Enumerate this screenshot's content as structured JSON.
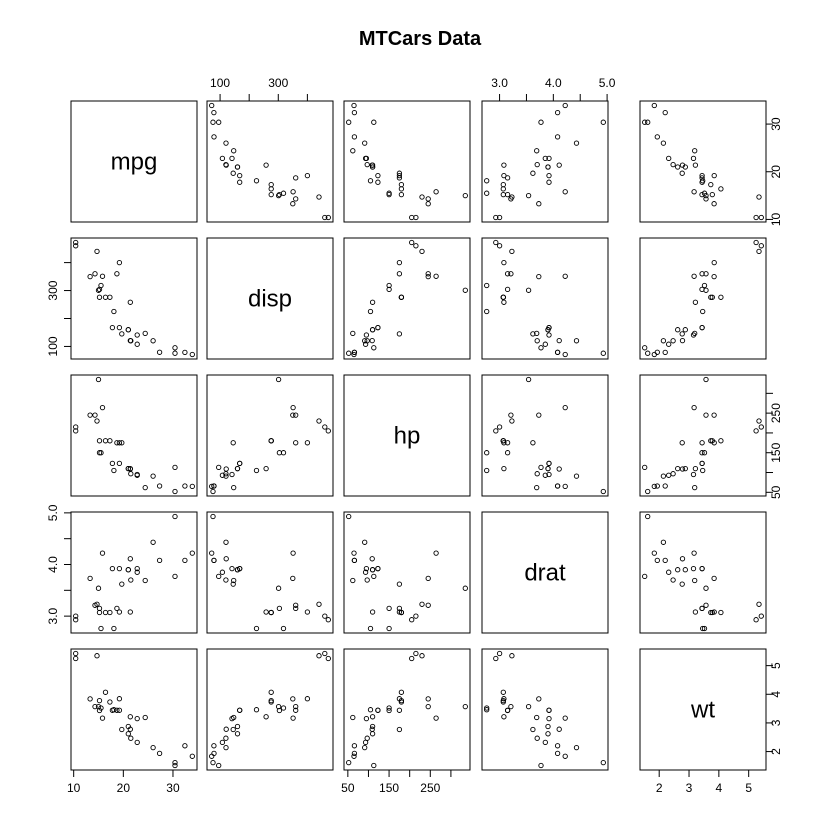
{
  "chart_data": {
    "type": "scatter",
    "title": "MTCars Data",
    "variables": [
      "mpg",
      "disp",
      "hp",
      "drat",
      "wt"
    ],
    "ranges": [
      [
        10.4,
        33.9
      ],
      [
        71.1,
        472
      ],
      [
        52,
        335
      ],
      [
        2.76,
        4.93
      ],
      [
        1.513,
        5.424
      ]
    ],
    "ticks": [
      [
        10,
        20,
        30
      ],
      [
        100,
        200,
        300,
        400
      ],
      [
        50,
        100,
        150,
        200,
        250,
        300
      ],
      [
        3.0,
        3.5,
        4.0,
        4.5,
        5.0
      ],
      [
        2,
        3,
        4,
        5
      ]
    ],
    "tick_labels": [
      [
        "10",
        "20",
        "30"
      ],
      [
        "100",
        "",
        "300",
        ""
      ],
      [
        "50",
        "",
        "150",
        "",
        "250",
        ""
      ],
      [
        "3.0",
        "",
        "4.0",
        "",
        "5.0"
      ],
      [
        "2",
        "3",
        "4",
        "5"
      ]
    ],
    "observations": [
      [
        21.0,
        160,
        110,
        3.9,
        2.62
      ],
      [
        21.0,
        160,
        110,
        3.9,
        2.875
      ],
      [
        22.8,
        108,
        93,
        3.85,
        2.32
      ],
      [
        21.4,
        258,
        110,
        3.08,
        3.215
      ],
      [
        18.7,
        360,
        175,
        3.15,
        3.44
      ],
      [
        18.1,
        225,
        105,
        2.76,
        3.46
      ],
      [
        14.3,
        360,
        245,
        3.21,
        3.57
      ],
      [
        24.4,
        146.7,
        62,
        3.69,
        3.19
      ],
      [
        22.8,
        140.8,
        95,
        3.92,
        3.15
      ],
      [
        19.2,
        167.6,
        123,
        3.92,
        3.44
      ],
      [
        17.8,
        167.6,
        123,
        3.92,
        3.44
      ],
      [
        16.4,
        275.8,
        180,
        3.07,
        4.07
      ],
      [
        17.3,
        275.8,
        180,
        3.07,
        3.73
      ],
      [
        15.2,
        275.8,
        180,
        3.07,
        3.78
      ],
      [
        10.4,
        472,
        205,
        2.93,
        5.25
      ],
      [
        10.4,
        460,
        215,
        3.0,
        5.424
      ],
      [
        14.7,
        440,
        230,
        3.23,
        5.345
      ],
      [
        32.4,
        78.7,
        66,
        4.08,
        2.2
      ],
      [
        30.4,
        75.7,
        52,
        4.93,
        1.615
      ],
      [
        33.9,
        71.1,
        65,
        4.22,
        1.835
      ],
      [
        21.5,
        120.1,
        97,
        3.7,
        2.465
      ],
      [
        15.5,
        318,
        150,
        2.76,
        3.52
      ],
      [
        15.2,
        304,
        150,
        3.15,
        3.435
      ],
      [
        13.3,
        350,
        245,
        3.73,
        3.84
      ],
      [
        19.2,
        400,
        175,
        3.08,
        3.845
      ],
      [
        27.3,
        79,
        66,
        4.08,
        1.935
      ],
      [
        26.0,
        120.3,
        91,
        4.43,
        2.14
      ],
      [
        30.4,
        95.1,
        113,
        3.77,
        1.513
      ],
      [
        15.8,
        351,
        264,
        4.22,
        3.17
      ],
      [
        19.7,
        145,
        175,
        3.62,
        2.77
      ],
      [
        15.0,
        301,
        335,
        3.54,
        3.57
      ],
      [
        21.4,
        121,
        109,
        4.11,
        2.78
      ]
    ]
  }
}
